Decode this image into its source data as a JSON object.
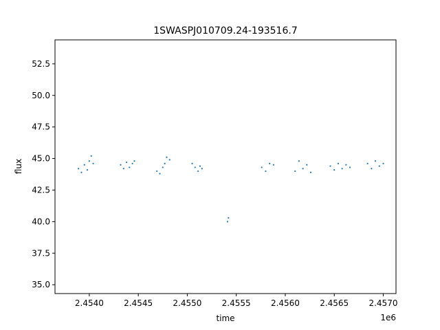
{
  "chart_data": {
    "type": "scatter",
    "title": "1SWASPJ010709.24-193516.7",
    "xlabel": "time",
    "ylabel": "flux",
    "x_offset_label": "1e6",
    "xlim": [
      2.45365,
      2.45713
    ],
    "ylim": [
      34.3,
      54.4
    ],
    "x_ticks": [
      2.454,
      2.4545,
      2.455,
      2.4555,
      2.456,
      2.4565,
      2.457
    ],
    "x_tick_labels": [
      "2.4540",
      "2.4545",
      "2.4550",
      "2.4555",
      "2.4560",
      "2.4565",
      "2.4570"
    ],
    "y_ticks": [
      35.0,
      37.5,
      40.0,
      42.5,
      45.0,
      47.5,
      50.0,
      52.5
    ],
    "y_tick_labels": [
      "35.0",
      "37.5",
      "40.0",
      "42.5",
      "45.0",
      "47.5",
      "50.0",
      "52.5"
    ],
    "grid": false,
    "marker_color": "#1f77b4",
    "series": [
      {
        "x": [
          2.45389,
          2.45392,
          2.45395,
          2.45398,
          2.454,
          2.45402,
          2.45404,
          2.45432,
          2.45435,
          2.45438,
          2.45441,
          2.45444,
          2.45446,
          2.45469,
          2.45472,
          2.45475,
          2.45477,
          2.45479,
          2.45482,
          2.45505,
          2.45508,
          2.45511,
          2.45513,
          2.45515,
          2.45541,
          2.45542,
          2.45576,
          2.4558,
          2.45584,
          2.45588,
          2.4561,
          2.45614,
          2.45618,
          2.45622,
          2.45626,
          2.45646,
          2.4565,
          2.45654,
          2.45658,
          2.45662,
          2.45666,
          2.45684,
          2.45688,
          2.45692,
          2.45696,
          2.457
        ],
        "y": [
          44.2,
          43.9,
          44.5,
          44.1,
          44.8,
          45.2,
          44.6,
          44.5,
          44.2,
          44.7,
          44.3,
          44.6,
          44.8,
          44.0,
          43.8,
          44.3,
          44.6,
          45.1,
          44.9,
          44.6,
          44.3,
          44.0,
          44.4,
          44.2,
          40.0,
          40.3,
          44.3,
          44.0,
          44.6,
          44.5,
          44.0,
          44.8,
          44.2,
          44.5,
          43.9,
          44.4,
          44.1,
          44.6,
          44.2,
          44.5,
          44.3,
          44.6,
          44.2,
          44.8,
          44.4,
          44.6
        ]
      }
    ]
  }
}
